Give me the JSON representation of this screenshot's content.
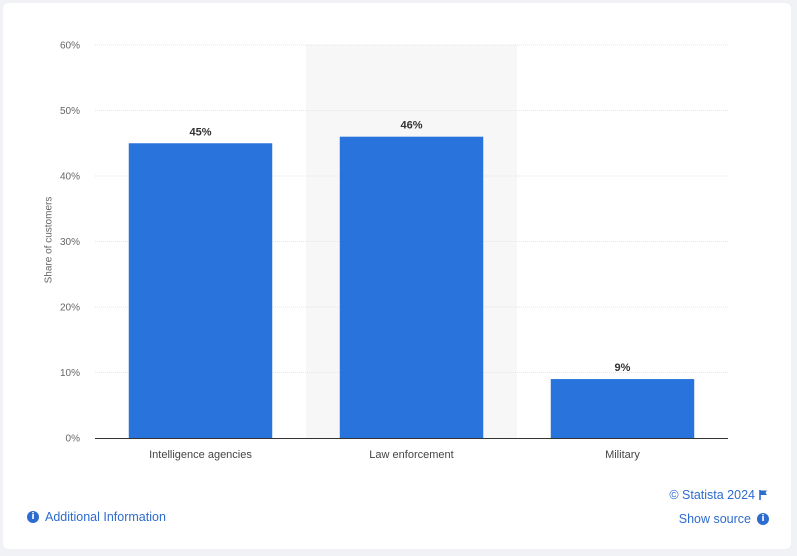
{
  "chart_data": {
    "type": "bar",
    "categories": [
      "Intelligence agencies",
      "Law enforcement",
      "Military"
    ],
    "values": [
      45,
      46,
      9
    ],
    "value_labels": [
      "45%",
      "46%",
      "9%"
    ],
    "ylabel": "Share of customers",
    "ylim": [
      0,
      60
    ],
    "yticks": [
      "0%",
      "10%",
      "20%",
      "30%",
      "40%",
      "50%",
      "60%"
    ],
    "grid": true,
    "highlighted_category": "Law enforcement",
    "bar_color": "#2874dc"
  },
  "footer": {
    "credit": "© Statista 2024",
    "show_source": "Show source",
    "additional_info": "Additional Information"
  },
  "colors": {
    "link": "#2d6ccf",
    "highlight": "#f7f7f7"
  }
}
